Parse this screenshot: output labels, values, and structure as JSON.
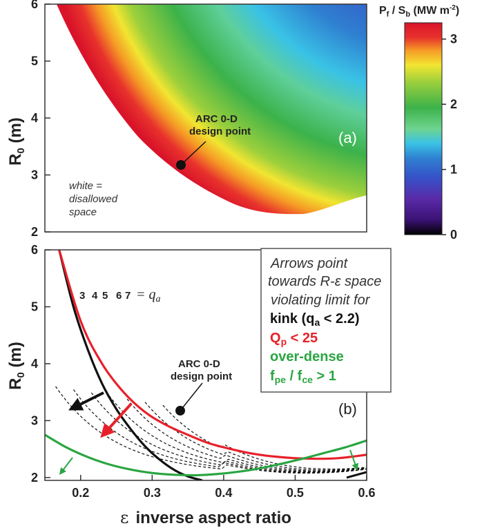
{
  "chart_data": [
    {
      "type": "heatmap",
      "panel_label": "(a)",
      "ylabel_main": "R",
      "ylabel_sub": "0",
      "ylabel_unit": " (m)",
      "y_ticks": [
        "2",
        "3",
        "4",
        "5",
        "6"
      ],
      "ylim": [
        2,
        6
      ],
      "xlim": [
        0.15,
        0.6
      ],
      "colorbar": {
        "title_main": "P",
        "title_f": "f",
        "title_slash": " / S",
        "title_b": "b",
        "title_unit": " (MW m",
        "title_exp": "-2",
        "title_close": ")",
        "ticks": [
          "0",
          "1",
          "2",
          "3"
        ],
        "range": [
          0,
          3.25
        ]
      },
      "design_point": {
        "x": 0.34,
        "y": 3.2,
        "label_line1": "ARC 0-D",
        "label_line2": "design point"
      },
      "note_lines": [
        "white =",
        "disallowed",
        "space"
      ],
      "colors": [
        "#000000",
        "#3b1275",
        "#5a2aa8",
        "#3552c8",
        "#2f7fd0",
        "#39c2e6",
        "#6fd38f",
        "#3cb24a",
        "#9ccf3c",
        "#f2e531",
        "#f59a25",
        "#e8322c",
        "#d9142a"
      ]
    },
    {
      "type": "line",
      "panel_label": "(b)",
      "xlabel_symbol": "ε",
      "xlabel": "inverse aspect ratio",
      "ylabel_main": "R",
      "ylabel_sub": "0",
      "ylabel_unit": " (m)",
      "x_ticks": [
        "0.2",
        "0.3",
        "0.4",
        "0.5",
        "0.6"
      ],
      "y_ticks": [
        "2",
        "3",
        "4",
        "5",
        "6"
      ],
      "xlim": [
        0.15,
        0.6
      ],
      "ylim": [
        1.95,
        6
      ],
      "qa_labels": [
        "3",
        "4",
        "5",
        "6",
        "7"
      ],
      "qa_suffix": "= q",
      "qa_sub": "a",
      "design_point": {
        "x": 0.34,
        "y": 3.2,
        "label_line1": "ARC 0-D",
        "label_line2": "design point"
      },
      "series": [
        {
          "name": "kink",
          "color": "#111111",
          "x": [
            0.17,
            0.19,
            0.21,
            0.23,
            0.25,
            0.27,
            0.29,
            0.31,
            0.33,
            0.35,
            0.37
          ],
          "y": [
            6.0,
            5.0,
            4.25,
            3.65,
            3.2,
            2.85,
            2.55,
            2.32,
            2.14,
            2.02,
            1.95
          ]
        },
        {
          "name": "Qp",
          "color": "#e8202a",
          "x": [
            0.17,
            0.2,
            0.23,
            0.26,
            0.29,
            0.32,
            0.35,
            0.38,
            0.41,
            0.44,
            0.47,
            0.5,
            0.53,
            0.56,
            0.6
          ],
          "y": [
            6.0,
            4.75,
            4.0,
            3.5,
            3.15,
            2.92,
            2.75,
            2.6,
            2.5,
            2.42,
            2.37,
            2.34,
            2.33,
            2.34,
            2.4
          ]
        },
        {
          "name": "over-dense",
          "color": "#2aa542",
          "x": [
            0.15,
            0.18,
            0.21,
            0.24,
            0.27,
            0.3,
            0.33,
            0.36,
            0.39,
            0.42,
            0.45,
            0.48,
            0.51,
            0.54,
            0.57,
            0.6
          ],
          "y": [
            2.75,
            2.53,
            2.36,
            2.23,
            2.14,
            2.08,
            2.05,
            2.04,
            2.06,
            2.1,
            2.16,
            2.24,
            2.33,
            2.43,
            2.53,
            2.65
          ]
        }
      ],
      "legend_box": {
        "line1": "Arrows point",
        "line2": "towards R-ε space",
        "line3": "violating limit for",
        "kink_main": "kink (q",
        "kink_sub": "a",
        "kink_tail": " < 2.2)",
        "qp_main": "Q",
        "qp_sub": "p",
        "qp_tail": " < 25",
        "dense1": "over-dense",
        "dense2_a": "f",
        "dense2_b": "pe",
        "dense2_c": " / f",
        "dense2_d": "ce",
        "dense2_e": " > 1"
      }
    }
  ]
}
